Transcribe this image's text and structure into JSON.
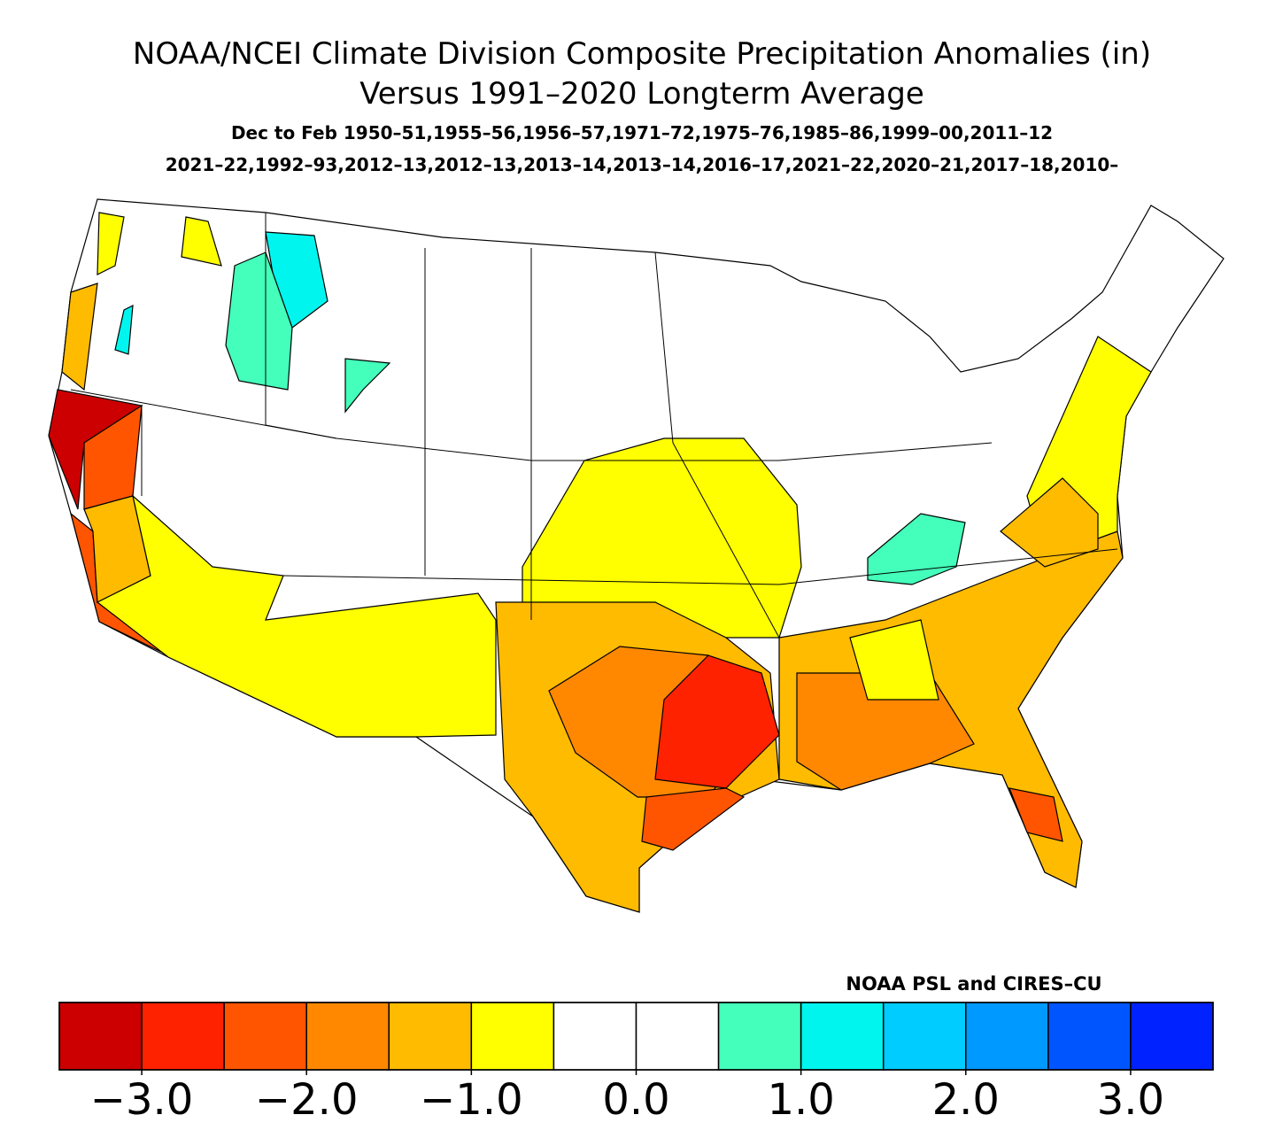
{
  "map": {
    "title": [
      "NOAA/NCEI Climate Division Composite Precipitation Anomalies (in)",
      "Versus 1991–2020 Longterm Average"
    ],
    "subtitle": [
      "Dec to Feb  1950–51,1955–56,1956–57,1971–72,1975–76,1985–86,1999–00,2011–12",
      "2021–22,1992–93,2012–13,2012–13,2013–14,2013–14,2016–17,2021–22,2020–21,2017–18,2010–"
    ],
    "credit": "NOAA PSL and CIRES–CU",
    "colorbar": {
      "range": [
        -3.5,
        3.5
      ],
      "colors": [
        "#cc0000",
        "#ff2200",
        "#ff5500",
        "#ff8800",
        "#ffbb00",
        "#ffff00",
        "#ffffff",
        "#ffffff",
        "#44ffbb",
        "#00f5ee",
        "#00ccff",
        "#0099ff",
        "#0055ff",
        "#0022ff"
      ],
      "ticks": [
        {
          "value": -3,
          "label": "−3.0"
        },
        {
          "value": -2,
          "label": "−2.0"
        },
        {
          "value": -1,
          "label": "−1.0"
        },
        {
          "value": 0,
          "label": "0.0"
        },
        {
          "value": 1,
          "label": "1.0"
        },
        {
          "value": 2,
          "label": "2.0"
        },
        {
          "value": 3,
          "label": "3.0"
        }
      ]
    }
  }
}
